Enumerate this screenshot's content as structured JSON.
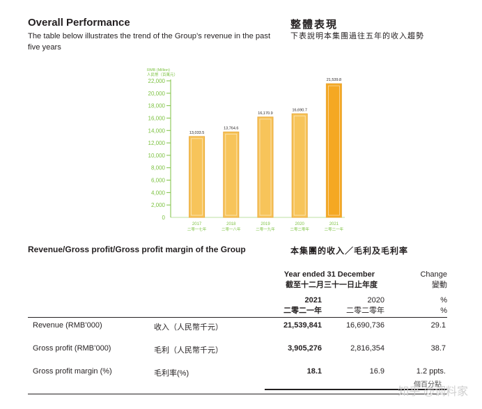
{
  "heading": {
    "title_en": "Overall Performance",
    "desc_en": "The table below illustrates the trend of the Group’s revenue in the past five years",
    "title_zh": "整體表現",
    "desc_zh": "下表說明本集團過往五年的收入趨勢"
  },
  "chart_data": {
    "type": "bar",
    "ylabel_en": "RMB (Million)",
    "ylabel_zh": "人民幣（百萬元）",
    "ylim": [
      0,
      22000
    ],
    "yticks": [
      "22,000",
      "20,000",
      "18,000",
      "16,000",
      "14,000",
      "12,000",
      "10,000",
      "8,000",
      "6,000",
      "4,000",
      "2,000",
      "0"
    ],
    "categories": [
      "2017",
      "2018",
      "2019",
      "2020",
      "2021"
    ],
    "categories_zh": [
      "二零一七年",
      "二零一八年",
      "二零一九年",
      "二零二零年",
      "二零二一年"
    ],
    "values": [
      13033.5,
      13764.6,
      16170.9,
      16690.7,
      21539.8
    ],
    "value_labels": [
      "13,033.5",
      "13,764.6",
      "16,170.9",
      "16,690.7",
      "21,539.8"
    ],
    "colors": {
      "bar": "#f7c45a",
      "bar_last": "#f5a823",
      "bar_edge": "#e9a93a",
      "axis": "#7dc242",
      "tick_text": "#7dc242"
    }
  },
  "section": {
    "title_en": "Revenue/Gross profit/Gross profit margin of the Group",
    "title_zh": "本集團的收入／毛利及毛利率"
  },
  "table": {
    "period_en": "Year ended 31 December",
    "period_zh": "截至十二月三十一日止年度",
    "change_en": "Change",
    "change_zh": "變動",
    "year1": "2021",
    "year1_zh": "二零二一年",
    "year2": "2020",
    "year2_zh": "二零二零年",
    "unit": "%",
    "unit2": "%",
    "rows": [
      {
        "label_en": "Revenue (RMB’000)",
        "label_zh": "收入（人民幣千元）",
        "v2021": "21,539,841",
        "v2020": "16,690,736",
        "change": "29.1"
      },
      {
        "label_en": "Gross profit (RMB’000)",
        "label_zh": "毛利（人民幣千元）",
        "v2021": "3,905,276",
        "v2020": "2,816,354",
        "change": "38.7"
      },
      {
        "label_en": "Gross profit margin (%)",
        "label_zh": "毛利率(%)",
        "v2021": "18.1",
        "v2020": "16.9",
        "change": "1.2 ppts."
      }
    ],
    "note_partial": "個百分點"
  },
  "watermark": "知乎 @调料家"
}
